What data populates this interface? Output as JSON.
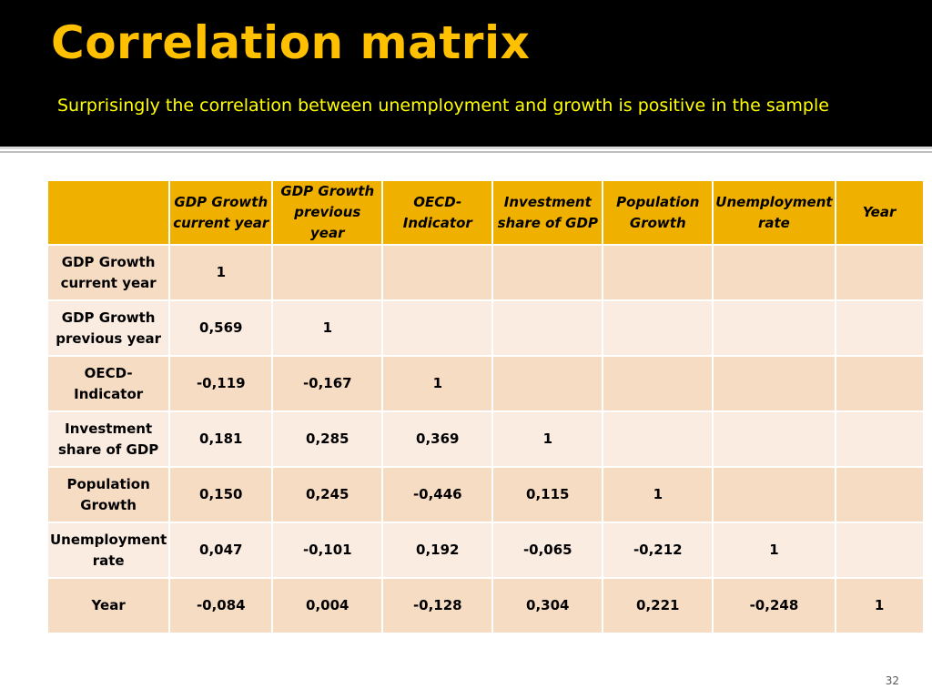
{
  "slide": {
    "title": "Correlation matrix",
    "subtitle": "Surprisingly the correlation  between unemployment and growth is positive in the sample",
    "page_number": "32"
  },
  "colors": {
    "header_bg": "#000000",
    "title": "#ffc000",
    "subtitle": "#ffff00",
    "table_header": "#f0b000",
    "row_odd": "#f7dcc4",
    "row_even": "#fbece2"
  },
  "table": {
    "corner": "",
    "columns": [
      "GDP Growth current year",
      "GDP Growth previous year",
      "OECD-Indicator",
      "Investment share of GDP",
      "Population Growth",
      "Unemployment rate",
      "Year"
    ],
    "rows": [
      {
        "label": "GDP Growth current year",
        "values": [
          "1",
          "",
          "",
          "",
          "",
          "",
          ""
        ]
      },
      {
        "label": "GDP Growth previous year",
        "values": [
          "0,569",
          "1",
          "",
          "",
          "",
          "",
          ""
        ]
      },
      {
        "label": "OECD-Indicator",
        "values": [
          "-0,119",
          "-0,167",
          "1",
          "",
          "",
          "",
          ""
        ]
      },
      {
        "label": "Investment share of GDP",
        "values": [
          "0,181",
          "0,285",
          "0,369",
          "1",
          "",
          "",
          ""
        ]
      },
      {
        "label": "Population Growth",
        "values": [
          "0,150",
          "0,245",
          "-0,446",
          "0,115",
          "1",
          "",
          ""
        ]
      },
      {
        "label": "Unemployment rate",
        "values": [
          "0,047",
          "-0,101",
          "0,192",
          "-0,065",
          "-0,212",
          "1",
          ""
        ]
      },
      {
        "label": "Year",
        "values": [
          "-0,084",
          "0,004",
          "-0,128",
          "0,304",
          "0,221",
          "-0,248",
          "1"
        ]
      }
    ]
  }
}
